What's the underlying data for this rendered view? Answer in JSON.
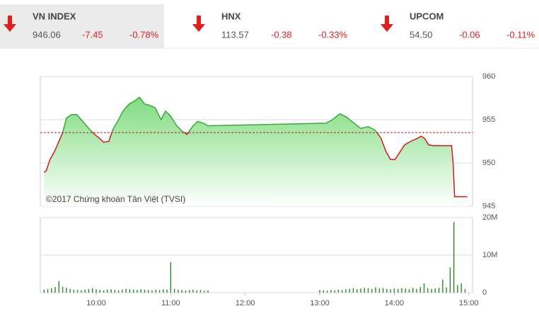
{
  "header": {
    "indices": [
      {
        "name": "VN INDEX",
        "value": "946.06",
        "change": "-7.45",
        "percent": "-0.78%"
      },
      {
        "name": "HNX",
        "value": "113.57",
        "change": "-0.38",
        "percent": "-0.33%"
      },
      {
        "name": "UPCOM",
        "value": "54.50",
        "change": "-0.06",
        "percent": "-0.11%"
      }
    ]
  },
  "chart_data": [
    {
      "type": "area",
      "annotation": "©2017 Chứng khoán Tân Việt (TVSI)",
      "x": [
        9.3,
        9.33,
        9.38,
        9.44,
        9.5,
        9.55,
        9.6,
        9.67,
        9.74,
        9.82,
        9.91,
        9.98,
        10.05,
        10.1,
        10.17,
        10.22,
        10.3,
        10.36,
        10.44,
        10.52,
        10.58,
        10.65,
        10.71,
        10.79,
        10.87,
        10.93,
        11.0,
        11.08,
        11.15,
        11.22,
        11.29,
        11.36,
        11.44,
        11.5,
        13.08,
        13.17,
        13.27,
        13.36,
        13.46,
        13.55,
        13.65,
        13.74,
        13.82,
        13.89,
        13.95,
        14.01,
        14.08,
        14.14,
        14.22,
        14.3,
        14.36,
        14.41,
        14.46,
        14.52,
        14.77,
        14.79,
        14.81,
        14.98
      ],
      "values": [
        948.9,
        949.1,
        950.4,
        951.3,
        952.5,
        953.5,
        955.2,
        955.6,
        955.6,
        954.8,
        953.9,
        953.3,
        952.8,
        952.4,
        952.5,
        953.8,
        955.0,
        956.0,
        956.8,
        957.2,
        957.6,
        956.8,
        956.7,
        956.4,
        955.0,
        956.0,
        955.4,
        954.3,
        953.7,
        953.3,
        954.2,
        954.8,
        954.6,
        954.3,
        954.6,
        955.0,
        955.7,
        955.3,
        954.6,
        954.0,
        954.2,
        953.8,
        952.9,
        951.3,
        950.4,
        950.4,
        951.3,
        952.1,
        952.5,
        952.8,
        953.1,
        952.8,
        952.1,
        952.0,
        952.0,
        950.0,
        946.1,
        946.1
      ],
      "reference": 953.51,
      "color_above": "#3aa83a",
      "color_below": "#d7191c",
      "reference_color": "#b22222",
      "xlim": [
        9.25,
        15.05
      ],
      "ylim": [
        945,
        960
      ],
      "yticks": [
        945,
        950,
        955,
        960
      ],
      "grid": true
    },
    {
      "type": "bar",
      "color": "#2a8a2a",
      "x": [
        9.3,
        9.35,
        9.4,
        9.45,
        9.5,
        9.55,
        9.6,
        9.65,
        9.7,
        9.75,
        9.8,
        9.85,
        9.9,
        9.95,
        10.0,
        10.05,
        10.1,
        10.15,
        10.2,
        10.25,
        10.3,
        10.35,
        10.4,
        10.45,
        10.5,
        10.55,
        10.6,
        10.65,
        10.7,
        10.75,
        10.8,
        10.85,
        10.9,
        10.95,
        11.0,
        11.05,
        11.1,
        11.15,
        11.2,
        11.25,
        11.3,
        11.35,
        11.4,
        11.45,
        11.5,
        13.0,
        13.05,
        13.1,
        13.15,
        13.2,
        13.25,
        13.3,
        13.35,
        13.4,
        13.45,
        13.5,
        13.55,
        13.6,
        13.65,
        13.7,
        13.75,
        13.8,
        13.85,
        13.9,
        13.95,
        14.0,
        14.05,
        14.1,
        14.15,
        14.2,
        14.25,
        14.3,
        14.35,
        14.4,
        14.45,
        14.5,
        14.55,
        14.6,
        14.65,
        14.7,
        14.75,
        14.8,
        14.85,
        14.9,
        14.95
      ],
      "values": [
        0.8,
        1.0,
        1.2,
        1.5,
        3.1,
        1.6,
        1.3,
        1.0,
        0.8,
        0.7,
        0.6,
        0.8,
        1.0,
        1.2,
        0.9,
        0.7,
        0.6,
        0.8,
        0.9,
        0.7,
        0.6,
        0.8,
        1.0,
        0.9,
        0.8,
        0.7,
        0.9,
        0.8,
        0.7,
        0.6,
        0.8,
        0.7,
        0.9,
        0.8,
        8.1,
        1.0,
        0.8,
        0.7,
        0.6,
        0.7,
        0.8,
        0.6,
        0.7,
        0.5,
        0.6,
        0.7,
        0.6,
        0.5,
        0.7,
        0.6,
        0.8,
        0.7,
        0.9,
        1.0,
        1.2,
        0.9,
        1.1,
        1.3,
        1.2,
        1.0,
        1.4,
        1.1,
        1.2,
        1.0,
        0.9,
        1.1,
        1.0,
        1.2,
        1.1,
        0.9,
        1.3,
        1.0,
        1.5,
        2.5,
        1.2,
        1.0,
        1.1,
        1.3,
        3.5,
        1.4,
        6.7,
        18.8,
        2.0,
        2.5,
        1.0
      ],
      "xlim": [
        9.25,
        15.05
      ],
      "xticks": [
        {
          "value": 10,
          "label": "10:00"
        },
        {
          "value": 11,
          "label": "11:00"
        },
        {
          "value": 12,
          "label": "12:00"
        },
        {
          "value": 13,
          "label": "13:00"
        },
        {
          "value": 14,
          "label": "14:00"
        },
        {
          "value": 15,
          "label": "15:00"
        }
      ],
      "ylim": [
        0,
        20
      ],
      "yticks": [
        0,
        {
          "value": 10,
          "label": "10M"
        },
        {
          "value": 20,
          "label": "20M"
        }
      ],
      "grid": true
    }
  ]
}
